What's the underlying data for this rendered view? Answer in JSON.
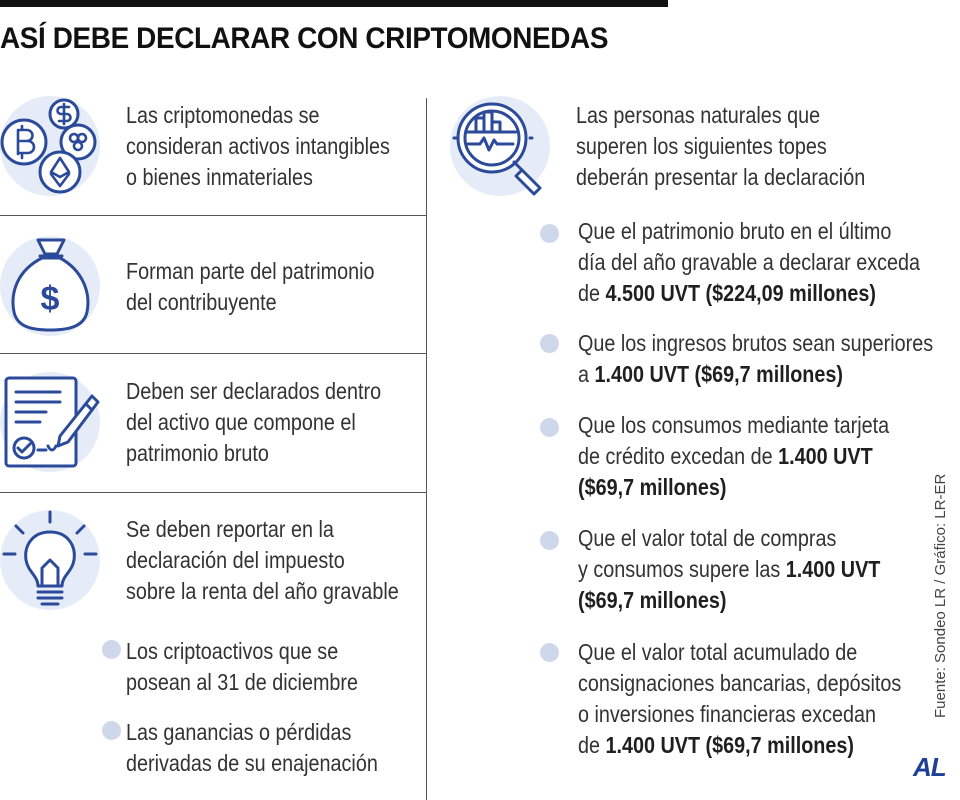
{
  "title": "ASÍ DEBE DECLARAR CON CRIPTOMONEDAS",
  "left": {
    "blocks": [
      {
        "icon": "crypto-coins-icon",
        "lines": [
          "Las criptomonedas se",
          "consideran activos intangibles",
          "o bienes inmateriales"
        ]
      },
      {
        "icon": "money-bag-icon",
        "lines": [
          "Forman parte del patrimonio",
          "del contribuyente"
        ]
      },
      {
        "icon": "signed-document-icon",
        "lines": [
          "Deben ser declarados dentro",
          "del activo que compone el",
          "patrimonio bruto"
        ]
      },
      {
        "icon": "light-bulb-icon",
        "lines": [
          "Se deben reportar en la",
          "declaración del impuesto",
          "sobre la renta del año gravable"
        ]
      }
    ],
    "bullets": [
      {
        "lines": [
          "Los criptoactivos que se",
          "posean al 31 de diciembre"
        ]
      },
      {
        "lines": [
          "Las ganancias o pérdidas",
          "derivadas de su enajenación"
        ]
      }
    ]
  },
  "right": {
    "intro_icon": "magnifier-chart-icon",
    "intro": [
      "Las personas naturales que",
      "superen los siguientes topes",
      "deberán presentar la declaración"
    ],
    "bullets": [
      {
        "l1": "Que el patrimonio bruto en el último",
        "l2": "día del año gravable a declarar exceda",
        "l3_pre": "de ",
        "l3_bold": "4.500 UVT ($224,09 millones)"
      },
      {
        "l1": "Que los ingresos brutos sean superiores",
        "l2_pre": "a ",
        "l2_bold": "1.400 UVT ($69,7 millones)"
      },
      {
        "l1": "Que los consumos mediante tarjeta",
        "l2_pre": "de crédito excedan de ",
        "l2_bold": "1.400 UVT",
        "l3_bold": "($69,7 millones)"
      },
      {
        "l1": "Que el valor total de compras",
        "l2_pre": "y consumos supere las ",
        "l2_bold": "1.400 UVT",
        "l3_bold": "($69,7 millones)"
      },
      {
        "l1": "Que el valor total acumulado de",
        "l2": "consignaciones bancarias, depósitos",
        "l3": "o inversiones financieras excedan",
        "l4_pre": "de ",
        "l4_bold": "1.400 UVT ($69,7 millones)"
      }
    ]
  },
  "source": "Fuente: Sondeo LR / Gráfico: LR-ER",
  "logo": "AL",
  "colors": {
    "icon_stroke": "#2b4a9a",
    "icon_bg": "#e6ecf7",
    "bullet": "#cfd8ea",
    "logo": "#1f3f95"
  }
}
